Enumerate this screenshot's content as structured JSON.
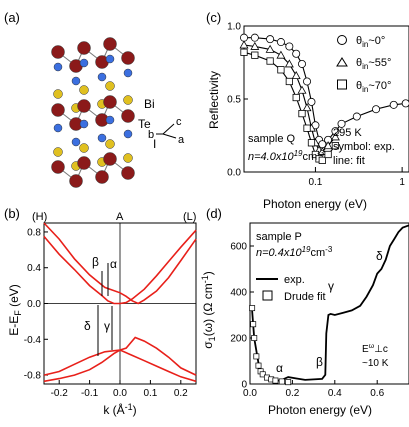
{
  "panels": {
    "a": {
      "label": "(a)",
      "atoms": [
        "Bi",
        "Te",
        "I"
      ],
      "axes": [
        "a",
        "b",
        "c"
      ],
      "colors": {
        "I": "#8b1a1a",
        "Te": "#3b6fe0",
        "Bi": "#e0c020",
        "bond": "#777777"
      }
    },
    "b": {
      "label": "(b)",
      "top_labels": [
        "(H)",
        "A",
        "(L)"
      ],
      "ylabel_main": "E-E",
      "ylabel_sub": "F",
      "ylabel_unit": " (eV)",
      "xlabel": "k (Å",
      "xlabel_sup": "-1",
      "xlabel_end": ")",
      "transitions": [
        "α",
        "β",
        "γ",
        "δ"
      ]
    },
    "c": {
      "label": "(c)",
      "legend": [
        {
          "symbol": "circle",
          "theta": "θ",
          "sub": "in",
          "value": "~0°"
        },
        {
          "symbol": "triangle",
          "theta": "θ",
          "sub": "in",
          "value": "~55°"
        },
        {
          "symbol": "square",
          "theta": "θ",
          "sub": "in",
          "value": "~70°"
        }
      ],
      "sample": "sample Q",
      "density_prefix": "n=4.0x10",
      "density_exp": "19",
      "density_unit": "cm",
      "density_unit_exp": "-3",
      "temperature": "295 K",
      "symbol_note": "symbol: exp.",
      "line_note": "line: fit"
    },
    "d": {
      "label": "(d)",
      "sample": "sample P",
      "density_prefix": "n=0.4x10",
      "density_exp": "19",
      "density_unit": "cm",
      "density_unit_exp": "-3",
      "legend_exp": "exp.",
      "legend_drude": "Drude fit",
      "field_note_main": "E",
      "field_note_sup": "ω",
      "field_note_tail": "⊥c",
      "temp_note": "~10 K",
      "ylabel": "σ",
      "ylabel_sub": "1",
      "ylabel_tail": "(ω) (Ω",
      "ylabel_cm": " cm",
      "ylabel_exp": "-1",
      "ylabel_end": ")",
      "transitions": [
        "α",
        "β",
        "γ",
        "δ"
      ]
    }
  },
  "chart_data": [
    {
      "panel": "b",
      "type": "line",
      "xlabel": "k (Å-1)",
      "ylabel": "E-EF (eV)",
      "xlim": [
        -0.25,
        0.25
      ],
      "ylim": [
        -0.9,
        0.9
      ],
      "xticks": [
        -0.2,
        -0.1,
        0.0,
        0.1,
        0.2
      ],
      "xtick_labels": [
        "-0.2",
        "-0.1",
        "0.0",
        "0.1",
        "0.2"
      ],
      "yticks": [
        -0.8,
        -0.4,
        0.0,
        0.4,
        0.8
      ],
      "ytick_labels": [
        "-0.8",
        "-0.4",
        "0.0",
        "0.4",
        "0.8"
      ],
      "series": [
        {
          "values": [
            [
              -0.25,
              0.75
            ],
            [
              -0.2,
              0.55
            ],
            [
              -0.15,
              0.38
            ],
            [
              -0.1,
              0.2
            ],
            [
              -0.06,
              0.09
            ],
            [
              -0.04,
              0.03
            ],
            [
              -0.02,
              0.0
            ],
            [
              0.0,
              0.0
            ],
            [
              0.02,
              0.01
            ],
            [
              0.04,
              0.05
            ],
            [
              0.08,
              0.16
            ],
            [
              0.12,
              0.31
            ],
            [
              0.16,
              0.47
            ],
            [
              0.2,
              0.63
            ],
            [
              0.25,
              0.82
            ]
          ]
        },
        {
          "values": [
            [
              -0.25,
              0.9
            ],
            [
              -0.2,
              0.72
            ],
            [
              -0.15,
              0.5
            ],
            [
              -0.1,
              0.32
            ],
            [
              -0.05,
              0.18
            ],
            [
              0.0,
              0.12
            ],
            [
              0.02,
              0.08
            ],
            [
              0.04,
              0.03
            ],
            [
              0.06,
              0.0
            ],
            [
              0.08,
              0.04
            ],
            [
              0.12,
              0.14
            ],
            [
              0.16,
              0.29
            ],
            [
              0.2,
              0.48
            ],
            [
              0.25,
              0.72
            ]
          ]
        },
        {
          "values": [
            [
              -0.25,
              -0.8
            ],
            [
              -0.2,
              -0.76
            ],
            [
              -0.15,
              -0.68
            ],
            [
              -0.1,
              -0.6
            ],
            [
              -0.05,
              -0.54
            ],
            [
              0.0,
              -0.52
            ],
            [
              0.02,
              -0.5
            ],
            [
              0.05,
              -0.38
            ],
            [
              0.08,
              -0.42
            ],
            [
              0.12,
              -0.5
            ],
            [
              0.16,
              -0.6
            ],
            [
              0.2,
              -0.72
            ],
            [
              0.25,
              -0.8
            ]
          ]
        },
        {
          "values": [
            [
              -0.25,
              -0.87
            ],
            [
              -0.2,
              -0.84
            ],
            [
              -0.15,
              -0.8
            ],
            [
              -0.1,
              -0.74
            ],
            [
              -0.06,
              -0.66
            ],
            [
              -0.02,
              -0.56
            ],
            [
              0.0,
              -0.52
            ],
            [
              0.04,
              -0.58
            ],
            [
              0.08,
              -0.64
            ],
            [
              0.12,
              -0.7
            ],
            [
              0.16,
              -0.76
            ],
            [
              0.2,
              -0.82
            ],
            [
              0.25,
              -0.87
            ]
          ]
        }
      ]
    },
    {
      "panel": "c",
      "type": "scatter",
      "xlabel": "Photon energy (eV)",
      "ylabel": "Reflectivity",
      "xscale": "log",
      "xlim": [
        0.015,
        1.2
      ],
      "ylim": [
        0.0,
        1.0
      ],
      "xticks": [
        0.1,
        1
      ],
      "xtick_labels": [
        "0.1",
        "1"
      ],
      "yticks": [
        0.0,
        0.5,
        1.0
      ],
      "ytick_labels": [
        "0.0",
        "0.5",
        "1.0"
      ],
      "series": [
        {
          "symbol": "circle",
          "values": [
            [
              0.015,
              0.92
            ],
            [
              0.02,
              0.92
            ],
            [
              0.03,
              0.91
            ],
            [
              0.04,
              0.89
            ],
            [
              0.05,
              0.86
            ],
            [
              0.06,
              0.81
            ],
            [
              0.07,
              0.74
            ],
            [
              0.08,
              0.62
            ],
            [
              0.09,
              0.48
            ],
            [
              0.1,
              0.32
            ],
            [
              0.11,
              0.22
            ],
            [
              0.12,
              0.19
            ],
            [
              0.14,
              0.22
            ],
            [
              0.17,
              0.28
            ],
            [
              0.2,
              0.33
            ],
            [
              0.3,
              0.38
            ],
            [
              0.5,
              0.43
            ],
            [
              0.8,
              0.46
            ],
            [
              1.1,
              0.47
            ]
          ]
        },
        {
          "symbol": "triangle",
          "values": [
            [
              0.015,
              0.87
            ],
            [
              0.02,
              0.86
            ],
            [
              0.03,
              0.84
            ],
            [
              0.04,
              0.8
            ],
            [
              0.05,
              0.74
            ],
            [
              0.06,
              0.66
            ],
            [
              0.07,
              0.56
            ],
            [
              0.08,
              0.44
            ],
            [
              0.09,
              0.3
            ],
            [
              0.1,
              0.2
            ],
            [
              0.11,
              0.15
            ],
            [
              0.12,
              0.14
            ],
            [
              0.14,
              0.18
            ],
            [
              0.17,
              0.24
            ]
          ]
        },
        {
          "symbol": "square",
          "values": [
            [
              0.015,
              0.82
            ],
            [
              0.02,
              0.8
            ],
            [
              0.03,
              0.76
            ],
            [
              0.04,
              0.7
            ],
            [
              0.05,
              0.62
            ],
            [
              0.06,
              0.51
            ],
            [
              0.07,
              0.4
            ],
            [
              0.08,
              0.3
            ],
            [
              0.09,
              0.2
            ],
            [
              0.1,
              0.12
            ],
            [
              0.11,
              0.09
            ],
            [
              0.12,
              0.08
            ],
            [
              0.14,
              0.12
            ],
            [
              0.17,
              0.18
            ]
          ]
        }
      ]
    },
    {
      "panel": "d",
      "type": "line",
      "xlabel": "Photon energy (eV)",
      "ylabel": "σ1(ω) (Ω cm-1)",
      "xlim": [
        0.0,
        0.75
      ],
      "ylim": [
        0,
        700
      ],
      "xticks": [
        0.0,
        0.2,
        0.4,
        0.6
      ],
      "xtick_labels": [
        "0.0",
        "0.2",
        "0.4",
        "0.6"
      ],
      "yticks": [
        0,
        200,
        400,
        600
      ],
      "ytick_labels": [
        "0",
        "200",
        "400",
        "600"
      ],
      "series": [
        {
          "name": "exp.",
          "values": [
            [
              0.01,
              320
            ],
            [
              0.02,
              200
            ],
            [
              0.04,
              90
            ],
            [
              0.06,
              40
            ],
            [
              0.08,
              20
            ],
            [
              0.12,
              12
            ],
            [
              0.15,
              18
            ],
            [
              0.18,
              30
            ],
            [
              0.22,
              24
            ],
            [
              0.26,
              18
            ],
            [
              0.3,
              20
            ],
            [
              0.34,
              22
            ],
            [
              0.355,
              40
            ],
            [
              0.36,
              220
            ],
            [
              0.37,
              300
            ],
            [
              0.38,
              305
            ],
            [
              0.4,
              300
            ],
            [
              0.44,
              310
            ],
            [
              0.48,
              320
            ],
            [
              0.52,
              340
            ],
            [
              0.55,
              380
            ],
            [
              0.58,
              430
            ],
            [
              0.6,
              480
            ],
            [
              0.62,
              500
            ],
            [
              0.64,
              540
            ],
            [
              0.66,
              600
            ],
            [
              0.68,
              630
            ],
            [
              0.7,
              660
            ],
            [
              0.72,
              680
            ],
            [
              0.75,
              690
            ]
          ]
        },
        {
          "name": "Drude fit",
          "values": [
            [
              0.01,
              330
            ],
            [
              0.015,
              260
            ],
            [
              0.02,
              200
            ],
            [
              0.03,
              120
            ],
            [
              0.04,
              80
            ],
            [
              0.05,
              55
            ],
            [
              0.06,
              42
            ],
            [
              0.08,
              28
            ],
            [
              0.1,
              20
            ],
            [
              0.12,
              15
            ],
            [
              0.15,
              11
            ],
            [
              0.18,
              8
            ]
          ]
        }
      ]
    }
  ]
}
